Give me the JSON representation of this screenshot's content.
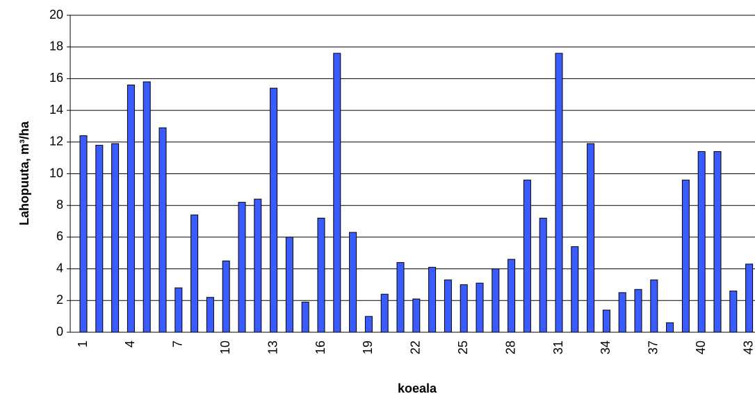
{
  "chart_data": {
    "type": "bar",
    "categories": [
      "1",
      null,
      null,
      "4",
      null,
      null,
      "7",
      null,
      null,
      "10",
      null,
      null,
      "13",
      null,
      null,
      "16",
      null,
      null,
      "19",
      null,
      null,
      "22",
      null,
      null,
      "25",
      null,
      null,
      "28",
      null,
      null,
      "31",
      null,
      null,
      "34",
      null,
      null,
      "37",
      null,
      null,
      "40",
      null,
      null,
      "43"
    ],
    "values": [
      12.4,
      11.8,
      11.9,
      15.6,
      15.8,
      12.9,
      2.8,
      7.4,
      2.2,
      4.5,
      8.2,
      8.4,
      15.4,
      6.0,
      1.9,
      7.2,
      17.6,
      6.3,
      1.0,
      2.4,
      4.4,
      2.1,
      4.1,
      3.3,
      3.0,
      3.1,
      4.0,
      4.6,
      9.6,
      7.2,
      17.6,
      5.4,
      11.9,
      1.4,
      2.5,
      2.7,
      3.3,
      0.6,
      9.6,
      11.4,
      11.4,
      2.6,
      4.3
    ],
    "color": "#3a5cff",
    "x_label": "koeala",
    "y_label": "Lahopuuta, m³/ha",
    "ylim": [
      0,
      20
    ],
    "yticks": [
      0,
      2,
      4,
      6,
      8,
      10,
      12,
      14,
      16,
      18,
      20
    ],
    "grid": true
  }
}
